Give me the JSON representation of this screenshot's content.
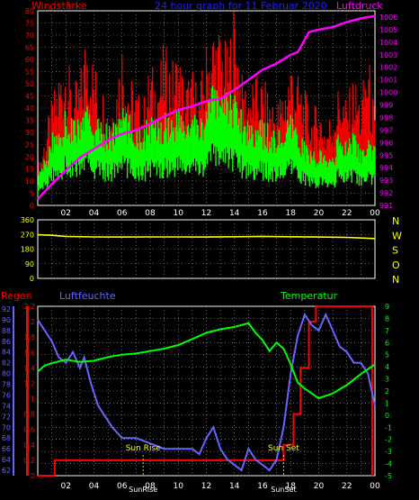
{
  "colors": {
    "wind_gust": "#ff0000",
    "wind_avg": "#00ff00",
    "pressure": "#ff00ff",
    "direction": "#ffff00",
    "rain": "#ff0000",
    "humidity": "#6666ff",
    "temperature": "#00ff00",
    "date": "#2222ff",
    "axes": "#ffffff",
    "grid": "#aaaaaa"
  },
  "chart_data": [
    {
      "type": "line",
      "title": "24 hour graph for 11 Februar 2020",
      "ylabel_left": "Windstärke",
      "ylabel_right": "Luftdruck",
      "x_ticks": [
        "02",
        "04",
        "06",
        "08",
        "10",
        "12",
        "14",
        "16",
        "18",
        "20",
        "22",
        "00"
      ],
      "y_left_ticks": [
        "0",
        "5",
        "10",
        "15",
        "20",
        "25",
        "30",
        "35",
        "40",
        "45",
        "50",
        "55",
        "60",
        "65",
        "70",
        "75",
        "80"
      ],
      "y_right_ticks": [
        "991",
        "992",
        "993",
        "994",
        "995",
        "996",
        "997",
        "998",
        "999",
        "1000",
        "1001",
        "1002",
        "1003",
        "1004",
        "1005",
        "1006"
      ],
      "ylim_left": [
        0,
        80
      ],
      "ylim_right": [
        991,
        1006.5
      ],
      "grid": true,
      "series": [
        {
          "name": "Windstärke",
          "hours": [
            0,
            0.5,
            1,
            1.5,
            2,
            2.5,
            3,
            3.5,
            4,
            4.5,
            5,
            5.5,
            6,
            6.5,
            7,
            7.5,
            8,
            8.5,
            9,
            9.5,
            10,
            10.5,
            11,
            11.5,
            12,
            12.5,
            13,
            13.5,
            14,
            14.5,
            15,
            15.5,
            16,
            16.5,
            17,
            17.5,
            18,
            18.5,
            19,
            19.5,
            20,
            20.5,
            21,
            21.5,
            22,
            22.5,
            23,
            23.5,
            24
          ],
          "gust": [
            15,
            28,
            40,
            52,
            60,
            45,
            50,
            70,
            55,
            48,
            40,
            45,
            65,
            50,
            45,
            40,
            55,
            50,
            62,
            55,
            60,
            48,
            52,
            45,
            62,
            70,
            68,
            60,
            78,
            50,
            46,
            50,
            48,
            44,
            40,
            46,
            58,
            50,
            44,
            36,
            40,
            32,
            38,
            48,
            40,
            50,
            42,
            60,
            35
          ],
          "avg": [
            10,
            16,
            24,
            28,
            32,
            30,
            30,
            34,
            30,
            28,
            27,
            28,
            34,
            30,
            28,
            27,
            30,
            29,
            32,
            31,
            33,
            30,
            31,
            29,
            36,
            40,
            42,
            38,
            40,
            32,
            29,
            30,
            28,
            27,
            25,
            26,
            30,
            26,
            22,
            18,
            20,
            16,
            18,
            26,
            20,
            28,
            18,
            22,
            20
          ]
        },
        {
          "name": "Luftdruck",
          "hours": [
            0,
            1,
            2,
            3,
            4,
            5,
            6,
            7,
            8,
            9,
            10,
            11,
            12,
            13,
            14,
            15,
            16,
            17,
            18,
            18.5,
            19,
            19.3,
            20,
            21,
            22,
            23,
            24
          ],
          "values": [
            991.5,
            992.7,
            993.8,
            994.8,
            995.5,
            996.2,
            996.7,
            997.0,
            997.5,
            998.1,
            998.6,
            998.9,
            999.3,
            999.5,
            1000.2,
            1001.0,
            1001.8,
            1002.3,
            1003.0,
            1003.2,
            1004.2,
            1004.8,
            1005.0,
            1005.2,
            1005.6,
            1005.9,
            1006.1
          ]
        }
      ]
    },
    {
      "type": "line",
      "y_ticks": [
        "360",
        "270",
        "180",
        "90",
        "0"
      ],
      "ylim": [
        0,
        360
      ],
      "compass": [
        "N",
        "W",
        "S",
        "O",
        "N"
      ],
      "series": [
        {
          "name": "Windrichtung",
          "hours": [
            0,
            1,
            2,
            4,
            6,
            8,
            10,
            12,
            14,
            16,
            18,
            20,
            22,
            24
          ],
          "values": [
            268,
            265,
            258,
            255,
            254,
            255,
            255,
            254,
            256,
            258,
            256,
            254,
            252,
            245
          ]
        }
      ]
    },
    {
      "type": "line",
      "ylabel_rain": "Regen",
      "ylabel_humidity": "Luftfeuchte",
      "ylabel_temperature": "Temperatur",
      "x_ticks": [
        "02",
        "04",
        "06",
        "08",
        "10",
        "12",
        "14",
        "16",
        "18",
        "20",
        "22",
        "00"
      ],
      "x_tick_overlays": [
        "Sun Rise",
        "Sun Set"
      ],
      "rain_ticks": [
        "0",
        "0.2",
        "0.4",
        "0.6",
        "0.8",
        "1",
        "1.2",
        "1.4",
        "1.6",
        "1.8",
        "2",
        "2.2"
      ],
      "humidity_ticks": [
        "62",
        "64",
        "66",
        "68",
        "70",
        "72",
        "74",
        "76",
        "78",
        "80",
        "82",
        "84",
        "86",
        "88",
        "90",
        "92"
      ],
      "temperature_ticks": [
        "-5",
        "-4",
        "-3",
        "-2",
        "-1",
        "0",
        "1",
        "2",
        "3",
        "4",
        "5",
        "6",
        "7",
        "8",
        "9"
      ],
      "rain_lim": [
        0,
        2.2
      ],
      "humidity_lim": [
        61,
        92.5
      ],
      "temperature_lim": [
        -5,
        9
      ],
      "annotations": [
        {
          "text": "Sun Rise",
          "hour": 7.5
        },
        {
          "text": "Sun Set",
          "hour": 17.5
        }
      ],
      "series": [
        {
          "name": "Regen",
          "hours": [
            0,
            1.2,
            1.2,
            17.5,
            17.5,
            18.2,
            18.2,
            18.7,
            18.7,
            19.3,
            19.3,
            19.8,
            19.8,
            23.8,
            23.8
          ],
          "values": [
            0,
            0,
            0.2,
            0.2,
            0.4,
            0.4,
            0.8,
            0.8,
            1.4,
            1.4,
            2.0,
            2.0,
            2.2,
            2.2,
            0
          ]
        },
        {
          "name": "Luftfeuchte",
          "hours": [
            0,
            0.5,
            1,
            1.5,
            2,
            2.5,
            3,
            3.3,
            3.8,
            4.3,
            4.8,
            5.3,
            6,
            7,
            8,
            9,
            10,
            11,
            11.5,
            12,
            12.5,
            13,
            13.5,
            14,
            14.5,
            15,
            15.5,
            16,
            16.5,
            17,
            17.5,
            18,
            18.5,
            19,
            19.5,
            20,
            20.5,
            21,
            21.5,
            22,
            22.5,
            23,
            23.5,
            24
          ],
          "values": [
            90,
            88,
            86,
            83,
            82,
            84,
            81,
            83,
            78,
            74,
            72,
            70,
            68,
            68,
            67,
            66,
            66,
            66,
            65,
            68,
            70,
            66,
            64,
            63,
            62,
            66,
            64,
            63,
            62,
            64,
            70,
            80,
            87,
            91,
            89,
            88,
            91,
            88,
            85,
            84,
            82,
            82,
            80,
            74
          ]
        },
        {
          "name": "Temperatur",
          "hours": [
            0,
            0.5,
            1,
            2,
            3,
            4,
            5,
            6,
            7,
            8,
            9,
            10,
            11,
            12,
            13,
            14,
            15,
            15.5,
            16,
            16.5,
            17,
            17.5,
            18,
            18.5,
            19,
            19.5,
            20,
            21,
            22,
            23,
            24
          ],
          "values": [
            3.6,
            4.1,
            4.3,
            4.6,
            4.4,
            4.5,
            4.8,
            5.0,
            5.1,
            5.3,
            5.5,
            5.8,
            6.3,
            6.8,
            7.1,
            7.3,
            7.6,
            6.8,
            6.2,
            5.3,
            6.0,
            5.5,
            4.2,
            2.7,
            2.2,
            1.8,
            1.4,
            1.8,
            2.5,
            3.4,
            4.2
          ]
        }
      ]
    }
  ]
}
